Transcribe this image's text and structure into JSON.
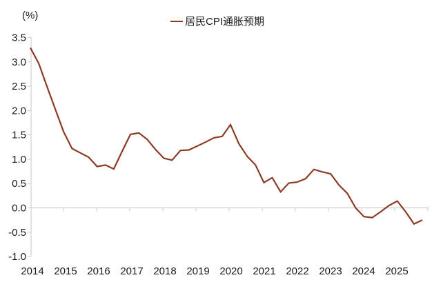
{
  "unit_label": "(%)",
  "legend": {
    "series_label": "居民CPI通胀预期"
  },
  "colors": {
    "line": "#8b3a24",
    "axis": "#c9c9c9",
    "zero_line": "#cccccc",
    "text": "#1a1a1a"
  },
  "chart_data": {
    "type": "line",
    "title": "",
    "xlabel": "",
    "ylabel": "(%)",
    "ylim": [
      -1.0,
      3.5
    ],
    "ytick_step": 0.5,
    "ytick_labels": [
      "3.5",
      "3.0",
      "2.5",
      "2.0",
      "1.5",
      "1.0",
      "0.5",
      "0.0",
      "-0.5",
      "-1.0"
    ],
    "x_year_labels": [
      "2014",
      "2015",
      "2016",
      "2017",
      "2018",
      "2019",
      "2020",
      "2021",
      "2022",
      "2023",
      "2024",
      "2025"
    ],
    "grid": "zero-line-only",
    "legend_position": "top-center",
    "x": [
      "2014Q1",
      "2014Q2",
      "2014Q3",
      "2014Q4",
      "2015Q1",
      "2015Q2",
      "2015Q3",
      "2015Q4",
      "2016Q1",
      "2016Q2",
      "2016Q3",
      "2016Q4",
      "2017Q1",
      "2017Q2",
      "2017Q3",
      "2017Q4",
      "2018Q1",
      "2018Q2",
      "2018Q3",
      "2018Q4",
      "2019Q1",
      "2019Q2",
      "2019Q3",
      "2019Q4",
      "2020Q1",
      "2020Q2",
      "2020Q3",
      "2020Q4",
      "2021Q1",
      "2021Q2",
      "2021Q3",
      "2021Q4",
      "2022Q1",
      "2022Q2",
      "2022Q3",
      "2022Q4",
      "2023Q1",
      "2023Q2",
      "2023Q3",
      "2023Q4",
      "2024Q1",
      "2024Q2",
      "2024Q3",
      "2024Q4",
      "2025Q1",
      "2025Q2",
      "2025Q3",
      "2025Q4"
    ],
    "series": [
      {
        "name": "居民CPI通胀预期",
        "values": [
          3.29,
          2.97,
          2.49,
          2.02,
          1.56,
          1.22,
          1.13,
          1.04,
          0.85,
          0.88,
          0.8,
          1.16,
          1.51,
          1.54,
          1.41,
          1.2,
          1.02,
          0.98,
          1.18,
          1.19,
          1.27,
          1.35,
          1.44,
          1.47,
          1.71,
          1.32,
          1.06,
          0.88,
          0.52,
          0.62,
          0.33,
          0.51,
          0.53,
          0.6,
          0.79,
          0.74,
          0.7,
          0.47,
          0.3,
          0.0,
          -0.18,
          -0.2,
          -0.08,
          0.05,
          0.14,
          -0.08,
          -0.33,
          -0.25
        ]
      }
    ]
  }
}
